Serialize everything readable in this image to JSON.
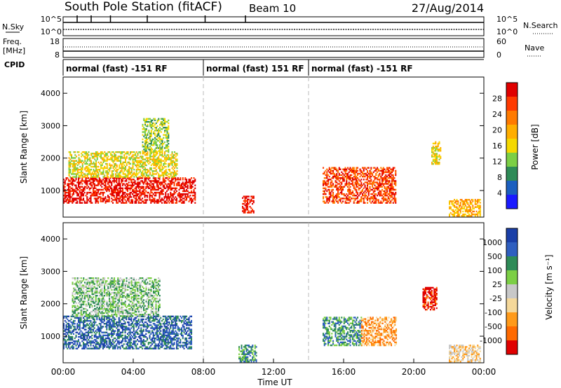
{
  "header": {
    "station": "South Pole Station (fitACF)",
    "beam": "Beam 10",
    "date": "27/Aug/2014"
  },
  "panels": {
    "nsky": {
      "label": "N.Sky",
      "right_label": "N.Search",
      "ticks_left": [
        "10^5",
        "10^0"
      ],
      "ticks_right": [
        "10^5",
        "10^0"
      ]
    },
    "freq": {
      "label_line1": "Freq.",
      "label_line2": "[MHz]",
      "right_label": "Nave",
      "ticks_left": [
        "18",
        "8"
      ],
      "ticks_right": [
        "60",
        "0"
      ]
    },
    "cpid": {
      "label": "CPID",
      "segments": [
        {
          "text": "normal (fast) -151 RF",
          "start_h": 0
        },
        {
          "text": "normal (fast) 151 RF",
          "start_h": 8
        },
        {
          "text": "normal (fast) -151 RF",
          "start_h": 14
        }
      ]
    }
  },
  "chart_data": [
    {
      "type": "heatmap",
      "parameter": "power",
      "ylabel": "Slant Range [km]",
      "ylim": [
        180,
        4500
      ],
      "yticks": [
        1000,
        2000,
        3000,
        4000
      ],
      "xlim_hours": [
        0,
        24
      ],
      "colorbar": {
        "label": "Power [dB]",
        "ticks": [
          "28",
          "24",
          "20",
          "16",
          "12",
          "8",
          "4"
        ],
        "colors": [
          "#e00000",
          "#ff3a00",
          "#ff7a00",
          "#ffae00",
          "#f5d800",
          "#7ccf45",
          "#2e8b57",
          "#1b5fbf",
          "#1a1aff"
        ]
      },
      "echo_regions": [
        {
          "t": [
            0.0,
            7.5
          ],
          "r": [
            600,
            1400
          ],
          "level": 8
        },
        {
          "t": [
            0.3,
            6.5
          ],
          "r": [
            1400,
            2200
          ],
          "level": 4
        },
        {
          "t": [
            4.5,
            6.0
          ],
          "r": [
            2200,
            3200
          ],
          "level": 3
        },
        {
          "t": [
            10.2,
            10.9
          ],
          "r": [
            300,
            800
          ],
          "level": 8
        },
        {
          "t": [
            14.8,
            19.0
          ],
          "r": [
            600,
            1700
          ],
          "level": 7
        },
        {
          "t": [
            21.0,
            21.5
          ],
          "r": [
            1800,
            2500
          ],
          "level": 4
        },
        {
          "t": [
            22.0,
            23.8
          ],
          "r": [
            200,
            700
          ],
          "level": 5
        }
      ]
    },
    {
      "type": "heatmap",
      "parameter": "velocity",
      "ylabel": "Slant Range [km]",
      "ylim": [
        180,
        4500
      ],
      "yticks": [
        1000,
        2000,
        3000,
        4000
      ],
      "xlim_hours": [
        0,
        24
      ],
      "xlabel": "Time UT",
      "xticks": [
        "00:00",
        "04:00",
        "08:00",
        "12:00",
        "16:00",
        "20:00",
        "00:00"
      ],
      "colorbar": {
        "label": "Velocity [m s⁻¹]",
        "ticks": [
          "1000",
          "500",
          "100",
          "25",
          "-25",
          "-100",
          "-500",
          "-1000"
        ],
        "colors": [
          "#1a3fa8",
          "#2f5fc0",
          "#2e8b57",
          "#7ccf45",
          "#c8c8c8",
          "#f5d89a",
          "#ff9a1a",
          "#ff6a00",
          "#e00000"
        ]
      },
      "echo_regions": [
        {
          "t": [
            0.0,
            7.3
          ],
          "r": [
            600,
            1600
          ],
          "level": 7
        },
        {
          "t": [
            0.5,
            5.5
          ],
          "r": [
            1600,
            2800
          ],
          "level": 5
        },
        {
          "t": [
            10.0,
            11.0
          ],
          "r": [
            200,
            700
          ],
          "level": 6
        },
        {
          "t": [
            14.8,
            17.0
          ],
          "r": [
            700,
            1600
          ],
          "level": 6
        },
        {
          "t": [
            17.0,
            19.0
          ],
          "r": [
            700,
            1600
          ],
          "level": 2
        },
        {
          "t": [
            20.5,
            21.3
          ],
          "r": [
            1800,
            2500
          ],
          "level": 0
        },
        {
          "t": [
            22.0,
            23.8
          ],
          "r": [
            200,
            700
          ],
          "level": 3
        }
      ]
    }
  ]
}
